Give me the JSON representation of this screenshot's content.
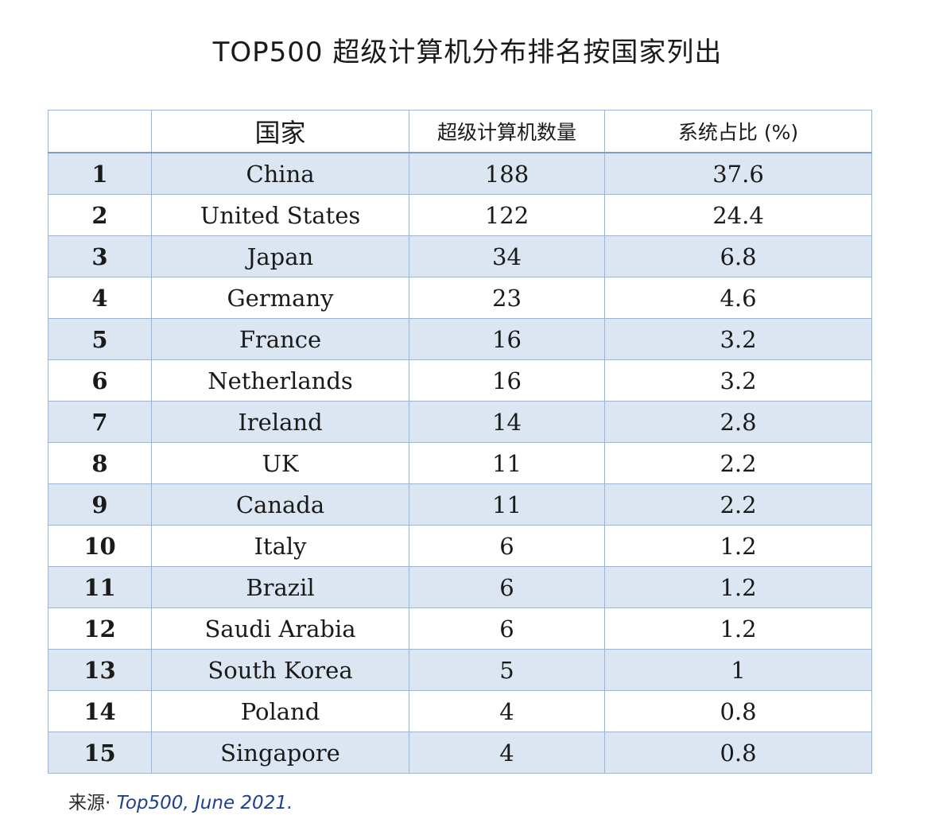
{
  "title": "TOP500 超级计算机分布排名按国家列出",
  "table": {
    "headers": {
      "rank": "",
      "country": "国家",
      "count": "超级计算机数量",
      "share": "系统占比 (%)"
    },
    "rows": [
      {
        "rank": "1",
        "country": "China",
        "count": "188",
        "share": "37.6"
      },
      {
        "rank": "2",
        "country": "United States",
        "count": "122",
        "share": "24.4"
      },
      {
        "rank": "3",
        "country": "Japan",
        "count": "34",
        "share": "6.8"
      },
      {
        "rank": "4",
        "country": "Germany",
        "count": "23",
        "share": "4.6"
      },
      {
        "rank": "5",
        "country": "France",
        "count": "16",
        "share": "3.2"
      },
      {
        "rank": "6",
        "country": "Netherlands",
        "count": "16",
        "share": "3.2"
      },
      {
        "rank": "7",
        "country": "Ireland",
        "count": "14",
        "share": "2.8"
      },
      {
        "rank": "8",
        "country": "UK",
        "count": "11",
        "share": "2.2"
      },
      {
        "rank": "9",
        "country": "Canada",
        "count": "11",
        "share": "2.2"
      },
      {
        "rank": "10",
        "country": "Italy",
        "count": "6",
        "share": "1.2"
      },
      {
        "rank": "11",
        "country": "Brazil",
        "count": "6",
        "share": "1.2"
      },
      {
        "rank": "12",
        "country": "Saudi Arabia",
        "count": "6",
        "share": "1.2"
      },
      {
        "rank": "13",
        "country": "South Korea",
        "count": "5",
        "share": "1"
      },
      {
        "rank": "14",
        "country": "Poland",
        "count": "4",
        "share": "0.8"
      },
      {
        "rank": "15",
        "country": "Singapore",
        "count": "4",
        "share": "0.8"
      }
    ]
  },
  "source": {
    "label": "来源·",
    "reference": "Top500, June 2021."
  },
  "colors": {
    "row_shade": "#dce6f2",
    "border": "#9fb5cf",
    "source_link": "#1f3f8f"
  }
}
